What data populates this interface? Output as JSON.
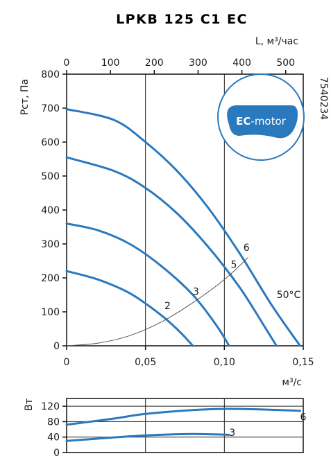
{
  "chart_data": [
    {
      "type": "line",
      "title": "LPKB 125 C1 EC",
      "ylabel": "Pст, Па",
      "xlabel": "м³/с",
      "x2label": "L, м³/час",
      "side_code": "7540234",
      "badge": "EC-motor",
      "badge_ec": "EC",
      "badge_rest": "-motor",
      "temperature": "50°C",
      "xlim": [
        0,
        0.15
      ],
      "ylim": [
        0,
        800
      ],
      "x2lim": [
        0,
        540
      ],
      "xticks": [
        0,
        0.05,
        0.1,
        0.15
      ],
      "xtick_labels": [
        "0",
        "0,05",
        "0,10",
        "0,15"
      ],
      "yticks": [
        0,
        100,
        200,
        300,
        400,
        500,
        600,
        700,
        800
      ],
      "ytick_labels": [
        "0",
        "100",
        "200",
        "300",
        "400",
        "500",
        "600",
        "700",
        "800"
      ],
      "x2ticks": [
        0,
        100,
        200,
        300,
        400,
        500
      ],
      "x2tick_labels": [
        "0",
        "100",
        "200",
        "300",
        "400",
        "500"
      ],
      "series": [
        {
          "name": "6",
          "x": [
            0,
            0.03,
            0.05,
            0.07,
            0.09,
            0.11,
            0.13,
            0.148
          ],
          "y": [
            697,
            665,
            600,
            515,
            405,
            270,
            120,
            0
          ]
        },
        {
          "name": "5",
          "x": [
            0,
            0.03,
            0.05,
            0.07,
            0.09,
            0.11,
            0.125,
            0.133
          ],
          "y": [
            555,
            515,
            465,
            390,
            290,
            170,
            60,
            0
          ]
        },
        {
          "name": "3",
          "x": [
            0,
            0.02,
            0.04,
            0.06,
            0.08,
            0.095,
            0.103
          ],
          "y": [
            360,
            340,
            300,
            235,
            150,
            60,
            0
          ]
        },
        {
          "name": "2",
          "x": [
            0,
            0.02,
            0.04,
            0.06,
            0.072,
            0.08
          ],
          "y": [
            220,
            195,
            155,
            90,
            40,
            0
          ]
        },
        {
          "name": "",
          "x": [
            0,
            0.02,
            0.04,
            0.06,
            0.08,
            0.1,
            0.115
          ],
          "y": [
            0,
            8,
            30,
            70,
            127,
            195,
            260
          ]
        }
      ],
      "curve_labels": [
        {
          "text": "6",
          "x": 0.114,
          "y": 280
        },
        {
          "text": "5",
          "x": 0.106,
          "y": 230
        },
        {
          "text": "3",
          "x": 0.082,
          "y": 150
        },
        {
          "text": "2",
          "x": 0.064,
          "y": 108
        }
      ]
    },
    {
      "type": "line",
      "ylabel": "Вт",
      "xlim": [
        0,
        0.15
      ],
      "ylim": [
        0,
        140
      ],
      "yticks": [
        0,
        40,
        80,
        120
      ],
      "ytick_labels": [
        "0",
        "40",
        "80",
        "120"
      ],
      "series": [
        {
          "name": "6",
          "x": [
            0,
            0.03,
            0.05,
            0.08,
            0.1,
            0.12,
            0.148
          ],
          "y": [
            72,
            88,
            100,
            110,
            113,
            112,
            108
          ]
        },
        {
          "name": "3",
          "x": [
            0,
            0.02,
            0.04,
            0.06,
            0.08,
            0.103
          ],
          "y": [
            30,
            36,
            42,
            46,
            48,
            46
          ]
        }
      ],
      "curve_labels": [
        {
          "text": "6",
          "x": 0.15,
          "y": 92
        },
        {
          "text": "3",
          "x": 0.105,
          "y": 52
        }
      ]
    }
  ]
}
